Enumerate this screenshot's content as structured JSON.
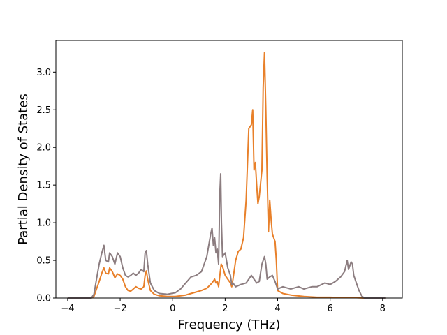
{
  "chart_data": {
    "type": "line",
    "xlabel": "Frequency (THz)",
    "ylabel": "Partial Density of States",
    "xlim": [
      -4.45,
      8.75
    ],
    "ylim": [
      0,
      3.42
    ],
    "xticks": [
      "−4",
      "−2",
      "0",
      "2",
      "4",
      "6",
      "8"
    ],
    "xtick_values": [
      -4,
      -2,
      0,
      2,
      4,
      6,
      8
    ],
    "yticks": [
      "0.0",
      "0.5",
      "1.0",
      "1.5",
      "2.0",
      "2.5",
      "3.0"
    ],
    "ytick_values": [
      0,
      0.5,
      1.0,
      1.5,
      2.0,
      2.5,
      3.0
    ],
    "grid": false,
    "legend": "none",
    "series": [
      {
        "color": "#e8802a",
        "points": [
          [
            -4.0,
            0
          ],
          [
            -3.1,
            0
          ],
          [
            -3.0,
            0.02
          ],
          [
            -2.9,
            0.12
          ],
          [
            -2.8,
            0.22
          ],
          [
            -2.7,
            0.33
          ],
          [
            -2.62,
            0.4
          ],
          [
            -2.55,
            0.33
          ],
          [
            -2.45,
            0.32
          ],
          [
            -2.4,
            0.4
          ],
          [
            -2.3,
            0.35
          ],
          [
            -2.2,
            0.27
          ],
          [
            -2.1,
            0.32
          ],
          [
            -2.0,
            0.3
          ],
          [
            -1.9,
            0.25
          ],
          [
            -1.8,
            0.15
          ],
          [
            -1.7,
            0.1
          ],
          [
            -1.6,
            0.09
          ],
          [
            -1.5,
            0.12
          ],
          [
            -1.4,
            0.15
          ],
          [
            -1.3,
            0.13
          ],
          [
            -1.2,
            0.12
          ],
          [
            -1.1,
            0.15
          ],
          [
            -1.05,
            0.3
          ],
          [
            -1.0,
            0.36
          ],
          [
            -0.95,
            0.25
          ],
          [
            -0.85,
            0.1
          ],
          [
            -0.7,
            0.05
          ],
          [
            -0.5,
            0.03
          ],
          [
            -0.2,
            0.02
          ],
          [
            0.1,
            0.02
          ],
          [
            0.3,
            0.03
          ],
          [
            0.5,
            0.04
          ],
          [
            0.7,
            0.06
          ],
          [
            0.9,
            0.08
          ],
          [
            1.1,
            0.1
          ],
          [
            1.3,
            0.13
          ],
          [
            1.5,
            0.2
          ],
          [
            1.6,
            0.25
          ],
          [
            1.65,
            0.2
          ],
          [
            1.7,
            0.22
          ],
          [
            1.75,
            0.15
          ],
          [
            1.8,
            0.3
          ],
          [
            1.85,
            0.45
          ],
          [
            1.9,
            0.42
          ],
          [
            2.0,
            0.3
          ],
          [
            2.1,
            0.25
          ],
          [
            2.2,
            0.2
          ],
          [
            2.25,
            0.15
          ],
          [
            2.3,
            0.25
          ],
          [
            2.4,
            0.5
          ],
          [
            2.5,
            0.62
          ],
          [
            2.6,
            0.65
          ],
          [
            2.7,
            0.8
          ],
          [
            2.8,
            1.3
          ],
          [
            2.9,
            2.25
          ],
          [
            3.0,
            2.3
          ],
          [
            3.05,
            2.5
          ],
          [
            3.1,
            1.7
          ],
          [
            3.15,
            1.8
          ],
          [
            3.2,
            1.5
          ],
          [
            3.25,
            1.25
          ],
          [
            3.3,
            1.35
          ],
          [
            3.4,
            1.7
          ],
          [
            3.45,
            2.8
          ],
          [
            3.5,
            3.26
          ],
          [
            3.55,
            2.5
          ],
          [
            3.6,
            1.6
          ],
          [
            3.65,
            0.88
          ],
          [
            3.7,
            1.3
          ],
          [
            3.75,
            1.05
          ],
          [
            3.8,
            0.85
          ],
          [
            3.9,
            0.75
          ],
          [
            3.95,
            0.5
          ],
          [
            4.0,
            0.1
          ],
          [
            4.2,
            0.06
          ],
          [
            4.5,
            0.04
          ],
          [
            5.0,
            0.02
          ],
          [
            5.5,
            0.01
          ],
          [
            6.0,
            0.01
          ],
          [
            6.5,
            0.005
          ],
          [
            7.0,
            0.005
          ],
          [
            7.3,
            0
          ],
          [
            8.1,
            0
          ]
        ]
      },
      {
        "color": "#8c7d80",
        "points": [
          [
            -4.0,
            0
          ],
          [
            -3.1,
            0
          ],
          [
            -3.0,
            0.05
          ],
          [
            -2.9,
            0.25
          ],
          [
            -2.8,
            0.45
          ],
          [
            -2.7,
            0.6
          ],
          [
            -2.62,
            0.7
          ],
          [
            -2.55,
            0.5
          ],
          [
            -2.45,
            0.48
          ],
          [
            -2.4,
            0.6
          ],
          [
            -2.3,
            0.55
          ],
          [
            -2.2,
            0.45
          ],
          [
            -2.1,
            0.6
          ],
          [
            -2.0,
            0.55
          ],
          [
            -1.9,
            0.4
          ],
          [
            -1.8,
            0.3
          ],
          [
            -1.7,
            0.28
          ],
          [
            -1.6,
            0.3
          ],
          [
            -1.5,
            0.33
          ],
          [
            -1.4,
            0.3
          ],
          [
            -1.3,
            0.33
          ],
          [
            -1.2,
            0.38
          ],
          [
            -1.1,
            0.35
          ],
          [
            -1.05,
            0.6
          ],
          [
            -1.0,
            0.63
          ],
          [
            -0.95,
            0.45
          ],
          [
            -0.85,
            0.2
          ],
          [
            -0.7,
            0.1
          ],
          [
            -0.5,
            0.06
          ],
          [
            -0.2,
            0.05
          ],
          [
            0.1,
            0.07
          ],
          [
            0.3,
            0.12
          ],
          [
            0.5,
            0.2
          ],
          [
            0.7,
            0.28
          ],
          [
            0.9,
            0.3
          ],
          [
            1.1,
            0.35
          ],
          [
            1.3,
            0.55
          ],
          [
            1.45,
            0.85
          ],
          [
            1.5,
            0.93
          ],
          [
            1.55,
            0.7
          ],
          [
            1.6,
            0.8
          ],
          [
            1.65,
            0.6
          ],
          [
            1.7,
            0.65
          ],
          [
            1.75,
            0.45
          ],
          [
            1.8,
            1.4
          ],
          [
            1.83,
            1.65
          ],
          [
            1.86,
            1.0
          ],
          [
            1.9,
            0.55
          ],
          [
            2.0,
            0.6
          ],
          [
            2.1,
            0.4
          ],
          [
            2.2,
            0.3
          ],
          [
            2.25,
            0.18
          ],
          [
            2.3,
            0.2
          ],
          [
            2.4,
            0.15
          ],
          [
            2.6,
            0.18
          ],
          [
            2.8,
            0.2
          ],
          [
            2.9,
            0.25
          ],
          [
            3.0,
            0.3
          ],
          [
            3.1,
            0.25
          ],
          [
            3.2,
            0.2
          ],
          [
            3.3,
            0.22
          ],
          [
            3.4,
            0.45
          ],
          [
            3.5,
            0.55
          ],
          [
            3.55,
            0.45
          ],
          [
            3.6,
            0.25
          ],
          [
            3.7,
            0.28
          ],
          [
            3.8,
            0.3
          ],
          [
            3.9,
            0.22
          ],
          [
            4.0,
            0.12
          ],
          [
            4.2,
            0.15
          ],
          [
            4.5,
            0.12
          ],
          [
            4.8,
            0.15
          ],
          [
            5.0,
            0.12
          ],
          [
            5.3,
            0.15
          ],
          [
            5.5,
            0.15
          ],
          [
            5.8,
            0.2
          ],
          [
            6.0,
            0.18
          ],
          [
            6.2,
            0.22
          ],
          [
            6.4,
            0.28
          ],
          [
            6.55,
            0.35
          ],
          [
            6.65,
            0.5
          ],
          [
            6.7,
            0.38
          ],
          [
            6.8,
            0.48
          ],
          [
            6.85,
            0.45
          ],
          [
            6.9,
            0.3
          ],
          [
            7.0,
            0.2
          ],
          [
            7.1,
            0.1
          ],
          [
            7.2,
            0.03
          ],
          [
            7.3,
            0
          ],
          [
            8.1,
            0
          ]
        ]
      }
    ]
  }
}
